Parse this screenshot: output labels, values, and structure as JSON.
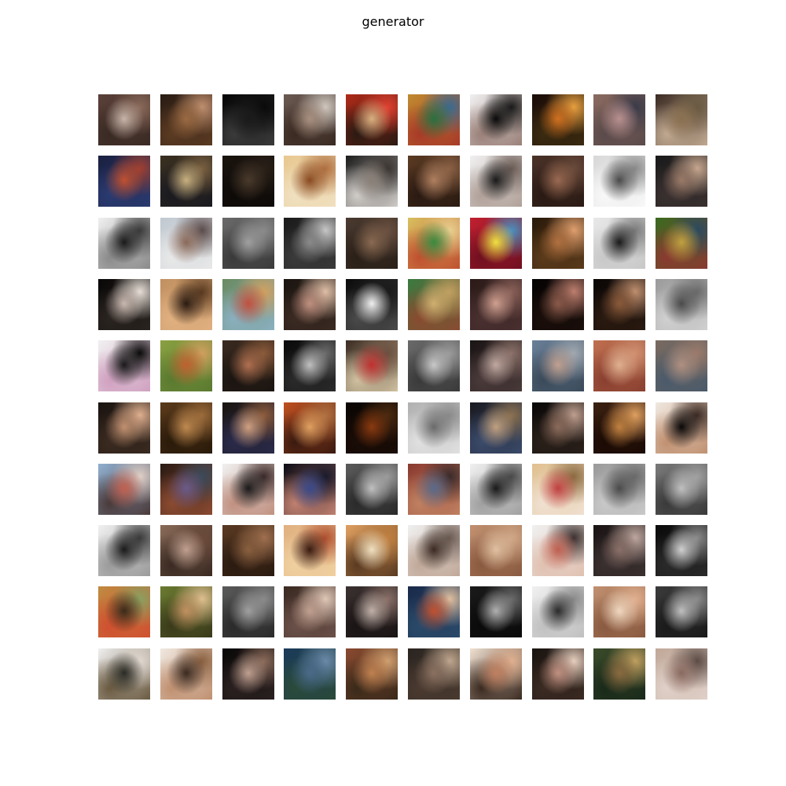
{
  "figure": {
    "title": "generator"
  },
  "grid": {
    "rows": 10,
    "cols": 10,
    "tiles": [
      [
        [
          "#5a4038",
          "#c8b4a8",
          "#3a2a24",
          "#8a6a5a"
        ],
        [
          "#2a1c14",
          "#9a6a42",
          "#5a3a22",
          "#c09070"
        ],
        [
          "#050505",
          "#1a1a1a",
          "#3a3a3a",
          "#0a0a0a"
        ],
        [
          "#6a5a52",
          "#a89080",
          "#3a2a22",
          "#d0c8c0"
        ],
        [
          "#b02a18",
          "#d8b080",
          "#2a1a12",
          "#e04030"
        ],
        [
          "#c08a30",
          "#2a7040",
          "#a83a28",
          "#3a6a90"
        ],
        [
          "#f0f0f0",
          "#0a0a0a",
          "#9a8078",
          "#1a1a1a"
        ],
        [
          "#1a0c08",
          "#d07020",
          "#3a2a10",
          "#e8a040"
        ],
        [
          "#8a6a60",
          "#b89090",
          "#5a4a4a",
          "#3a3a48"
        ],
        [
          "#3a2a22",
          "#8a7050",
          "#c0a890",
          "#6a5a42"
        ]
      ],
      [
        [
          "#1a2040",
          "#c05030",
          "#2a3a70",
          "#a04030"
        ],
        [
          "#3a3020",
          "#c8b080",
          "#1a1a20",
          "#7a6040"
        ],
        [
          "#1a140e",
          "#4a3a2c",
          "#0e0a08",
          "#2a2018"
        ],
        [
          "#e8c890",
          "#8a4a20",
          "#f0e0c0",
          "#b07040"
        ],
        [
          "#1a1a1a",
          "#8a8078",
          "#d0ccc8",
          "#3a3430"
        ],
        [
          "#5a3a22",
          "#b08060",
          "#2a1a12",
          "#8a6044"
        ],
        [
          "#f0f0f0",
          "#1a1a1a",
          "#b0a098",
          "#6a5a54"
        ],
        [
          "#4a3228",
          "#9a6a52",
          "#2a1a14",
          "#6a4a3a"
        ],
        [
          "#d8d8d8",
          "#4a4a4a",
          "#f8f8f8",
          "#8a8a8a"
        ],
        [
          "#1a1a1a",
          "#9a7a68",
          "#3a3030",
          "#c8a890"
        ]
      ],
      [
        [
          "#f0f0f0",
          "#1a1a1a",
          "#8a8a8a",
          "#3a3a3a"
        ],
        [
          "#c0c8d0",
          "#8a6a5a",
          "#e8e8e8",
          "#5a4a4a"
        ],
        [
          "#6a6a6a",
          "#a0a0a0",
          "#3a3a3a",
          "#8a8a8a"
        ],
        [
          "#1a1a1a",
          "#8a8a8a",
          "#3a3a3a",
          "#c8c8c8"
        ],
        [
          "#4a3a30",
          "#8a6a52",
          "#2a2018",
          "#6a5040"
        ],
        [
          "#d8c060",
          "#3a8a40",
          "#c05030",
          "#e8d090"
        ],
        [
          "#c02030",
          "#f0e040",
          "#701020",
          "#4a90c0"
        ],
        [
          "#2a1a0a",
          "#b07040",
          "#5a3a1a",
          "#e0a070"
        ],
        [
          "#e8e8e8",
          "#1a1a1a",
          "#c8c8c8",
          "#7a7a7a"
        ],
        [
          "#3a6a20",
          "#c0a040",
          "#8a3a30",
          "#2a4a60"
        ]
      ],
      [
        [
          "#0a0808",
          "#c8b8b0",
          "#2a2420",
          "#e8e0d8"
        ],
        [
          "#c09060",
          "#2a1a10",
          "#e0b080",
          "#5a3a20"
        ],
        [
          "#6a8a60",
          "#c05040",
          "#8ab0c0",
          "#d0a060"
        ],
        [
          "#1a1410",
          "#c09080",
          "#3a2a22",
          "#e0c0a8"
        ],
        [
          "#0a0a0a",
          "#f0f0f0",
          "#4a4a4a",
          "#1a1a1a"
        ],
        [
          "#3a7a40",
          "#d0b070",
          "#8a4a30",
          "#c0a060"
        ],
        [
          "#2a1a18",
          "#d0a090",
          "#4a3030",
          "#8a6058"
        ],
        [
          "#050303",
          "#8a5a4a",
          "#1a0e0a",
          "#c08070"
        ],
        [
          "#0a0605",
          "#8a5a3a",
          "#2a1a10",
          "#c09070"
        ],
        [
          "#9a9a9a",
          "#4a4a4a",
          "#d0d0d0",
          "#6a6a6a"
        ]
      ],
      [
        [
          "#f0f0f0",
          "#1a1a1a",
          "#d0a0c0",
          "#0a0a0a"
        ],
        [
          "#8aa040",
          "#c06030",
          "#5a7a30",
          "#d0a060"
        ],
        [
          "#3a2a20",
          "#b07050",
          "#1a1410",
          "#8a5a3a"
        ],
        [
          "#0a0a0a",
          "#c0c0c0",
          "#2a2a2a",
          "#6a6a6a"
        ],
        [
          "#3a2a20",
          "#c03030",
          "#d0c0a0",
          "#6a5040"
        ],
        [
          "#6a6a6a",
          "#c8c8c8",
          "#3a3a3a",
          "#9a9a9a"
        ],
        [
          "#1a1414",
          "#c0a8a0",
          "#4a3a3a",
          "#8a7068"
        ],
        [
          "#6a8098",
          "#c0a090",
          "#3a4a5a",
          "#a0a8b0"
        ],
        [
          "#c07050",
          "#e0b090",
          "#8a4030",
          "#d09070"
        ],
        [
          "#7a6a60",
          "#b09080",
          "#4a5a6a",
          "#9a7a6a"
        ]
      ],
      [
        [
          "#1a1410",
          "#c09070",
          "#3a2a20",
          "#e0b090"
        ],
        [
          "#5a3a1a",
          "#c08a50",
          "#2a1a0a",
          "#9a6a3a"
        ],
        [
          "#1a1410",
          "#d0a080",
          "#2a2a4a",
          "#8a5a3a"
        ],
        [
          "#c05020",
          "#e0a060",
          "#3a1a10",
          "#b07040"
        ],
        [
          "#0a0604",
          "#8a3a10",
          "#1a0c06",
          "#4a2a10"
        ],
        [
          "#b0b0b0",
          "#6a6a6a",
          "#e0e0e0",
          "#8a8a8a"
        ],
        [
          "#1a1a20",
          "#c0a080",
          "#3a4a6a",
          "#8a7050"
        ],
        [
          "#0a0808",
          "#8a6a5a",
          "#2a201a",
          "#c0a090"
        ],
        [
          "#3a2010",
          "#c08040",
          "#1a0a04",
          "#e0a060"
        ],
        [
          "#f0e8e0",
          "#0a0808",
          "#c09070",
          "#3a2a24"
        ]
      ],
      [
        [
          "#90b0d0",
          "#c06050",
          "#4a3a3a",
          "#e0d0c8"
        ],
        [
          "#2a1a14",
          "#6a5a8a",
          "#8a4a30",
          "#3a4a5a"
        ],
        [
          "#f0f0f0",
          "#1a1a1a",
          "#c09080",
          "#3a2a2a"
        ],
        [
          "#0a0a14",
          "#3a4a8a",
          "#c08070",
          "#1a1a2a"
        ],
        [
          "#5a5a5a",
          "#c0c0c0",
          "#2a2a2a",
          "#9a9a9a"
        ],
        [
          "#8a3a30",
          "#5a6a8a",
          "#c08060",
          "#3a2a2a"
        ],
        [
          "#f0f0f0",
          "#1a1a1a",
          "#a0a0a0",
          "#4a4a4a"
        ],
        [
          "#e0c090",
          "#c04040",
          "#f0e0d0",
          "#8a6a40"
        ],
        [
          "#9a9a9a",
          "#4a4a4a",
          "#c8c8c8",
          "#6a6a6a"
        ],
        [
          "#7a7a7a",
          "#c0c0c0",
          "#3a3a3a",
          "#a0a0a0"
        ]
      ],
      [
        [
          "#f0f0f0",
          "#1a1a1a",
          "#9a9a9a",
          "#3a3a3a"
        ],
        [
          "#8a6a58",
          "#c0a090",
          "#3a2a22",
          "#6a4a3a"
        ],
        [
          "#5a3a22",
          "#8a6040",
          "#2a1a10",
          "#a07050"
        ],
        [
          "#e0b080",
          "#3a1a10",
          "#f0d0a0",
          "#b05030"
        ],
        [
          "#e0a060",
          "#f0e0c0",
          "#5a3a20",
          "#c08040"
        ],
        [
          "#f0f0f0",
          "#3a2a22",
          "#c0a898",
          "#6a5a52"
        ],
        [
          "#c09070",
          "#e0c0a0",
          "#8a5a40",
          "#d0a888"
        ],
        [
          "#f0f0f0",
          "#c06050",
          "#e0c0b0",
          "#3a3030"
        ],
        [
          "#1a1414",
          "#8a7068",
          "#3a3030",
          "#c0a8a0"
        ],
        [
          "#0a0a0a",
          "#d0d0d0",
          "#2a2a2a",
          "#8a8a8a"
        ]
      ],
      [
        [
          "#c08a40",
          "#3a2a1a",
          "#d05030",
          "#8aa060"
        ],
        [
          "#6a7a30",
          "#c09060",
          "#3a3a1a",
          "#e0c090"
        ],
        [
          "#5a5a5a",
          "#a0a0a0",
          "#2a2a2a",
          "#8a8a8a"
        ],
        [
          "#3a2a22",
          "#c0a090",
          "#6a5048",
          "#e0c8b8"
        ],
        [
          "#3a3030",
          "#c0b0a8",
          "#1a1414",
          "#8a7068"
        ],
        [
          "#1a2a4a",
          "#c05030",
          "#2a4a6a",
          "#e0c0a0"
        ],
        [
          "#1a1a1a",
          "#b0b0b0",
          "#0a0a0a",
          "#6a6a6a"
        ],
        [
          "#f0f0f0",
          "#2a2a2a",
          "#c0c0c0",
          "#8a8a8a"
        ],
        [
          "#c09070",
          "#f0d8c0",
          "#8a5a40",
          "#e0b090"
        ],
        [
          "#3a3a3a",
          "#c0c0c0",
          "#1a1a1a",
          "#8a8a8a"
        ]
      ],
      [
        [
          "#f0f0f0",
          "#2a2a24",
          "#6a5a40",
          "#e0d8d0"
        ],
        [
          "#f0e8e0",
          "#3a2a20",
          "#c09070",
          "#8a6040"
        ],
        [
          "#0a0808",
          "#c0a090",
          "#2a2020",
          "#8a6a5a"
        ],
        [
          "#1a3a5a",
          "#4a6a8a",
          "#2a4a3a",
          "#6a8aaa"
        ],
        [
          "#8a4a30",
          "#c08050",
          "#3a2a1a",
          "#d0a070"
        ],
        [
          "#2a2420",
          "#8a7060",
          "#4a3a30",
          "#c0a890"
        ],
        [
          "#f0e0d0",
          "#c08060",
          "#3a2a20",
          "#e0b090"
        ],
        [
          "#1a1410",
          "#c09080",
          "#3a2a22",
          "#e8d0c0"
        ],
        [
          "#3a4a2a",
          "#8a6a40",
          "#1a2a1a",
          "#c0a060"
        ],
        [
          "#c0a898",
          "#8a6a60",
          "#e0d0c8",
          "#5a4a44"
        ]
      ]
    ]
  }
}
